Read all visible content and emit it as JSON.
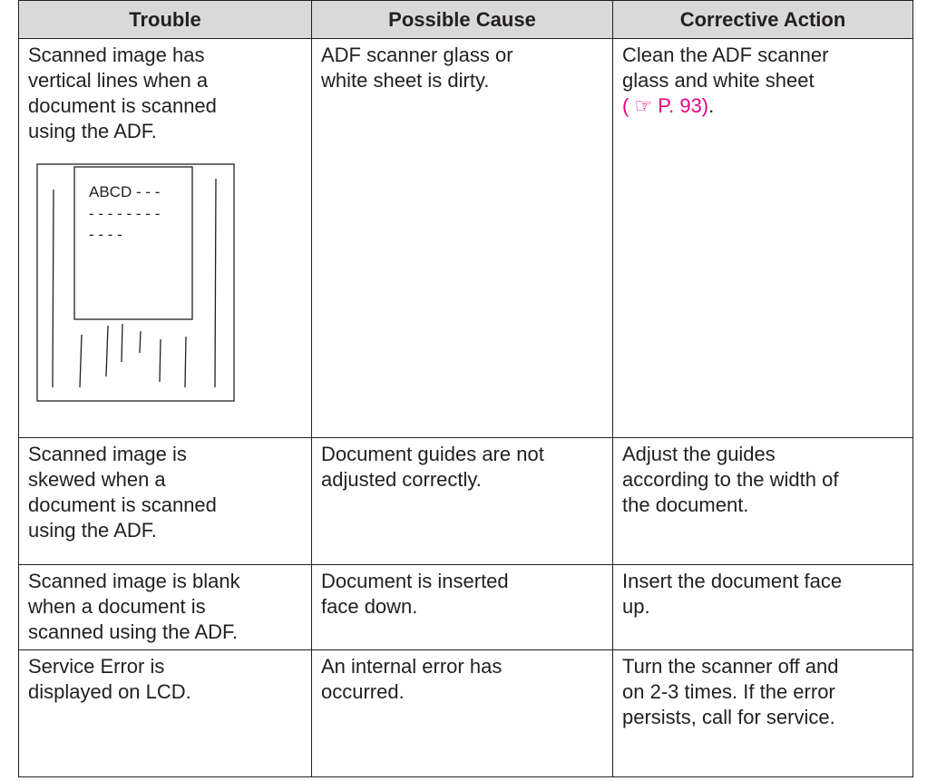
{
  "table": {
    "header": [
      "Trouble",
      "Possible Cause",
      "Corrective Action"
    ],
    "rows": [
      {
        "trouble": [
          "Scanned image has",
          "vertical lines when a",
          "document is scanned",
          "using the ADF."
        ],
        "cause": [
          "ADF scanner glass or",
          "white sheet is dirty."
        ],
        "action": [
          "Clean the ADF scanner",
          "glass and white sheet"
        ],
        "action_link": "( ☞ P. 93)",
        "action_end": "."
      },
      {
        "trouble": [
          "Scanned image is",
          "skewed when a",
          "document is scanned",
          "using the ADF."
        ],
        "cause": [
          "Document guides are not",
          "adjusted correctly."
        ],
        "action": [
          "Adjust the guides",
          "according to the width of",
          "the document."
        ]
      },
      {
        "trouble": [
          "Scanned image is blank",
          "when a document is",
          "scanned using the ADF."
        ],
        "cause": [
          "Document is inserted",
          "face down."
        ],
        "action": [
          "Insert the document face",
          "up."
        ]
      },
      {
        "trouble": [
          "Service Error is",
          "displayed on LCD."
        ],
        "cause": [
          "An internal error has",
          "occurred."
        ],
        "action": [
          "Turn the scanner off and",
          "on 2-3 times. If the error",
          "persists, call for service."
        ]
      }
    ]
  },
  "figure": {
    "lines": [
      "ABCD - - -",
      "- - - - - - - -",
      "- - - -"
    ]
  }
}
